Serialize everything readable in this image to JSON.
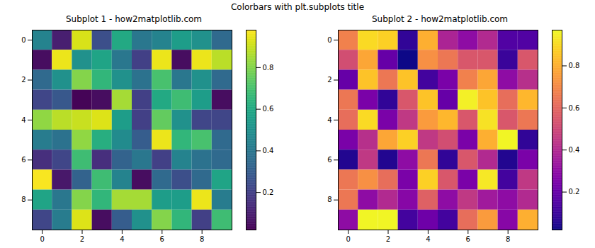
{
  "title": "Colorbars with plt.subplots title",
  "chart_data": [
    {
      "type": "heatmap",
      "title": "Subplot 1 - how2matplotlib.com",
      "color": "viridis",
      "xlim": [
        -0.5,
        9.5
      ],
      "ylim": [
        9.5,
        -0.5
      ],
      "xticks": [
        0,
        2,
        4,
        6,
        8
      ],
      "yticks": [
        0,
        2,
        4,
        6,
        8
      ],
      "cells": [
        [
          0.45,
          0.1,
          0.92,
          0.25,
          0.6,
          0.4,
          0.45,
          0.55,
          0.5,
          0.35
        ],
        [
          0.05,
          0.95,
          0.5,
          0.58,
          0.4,
          0.2,
          0.95,
          0.05,
          0.95,
          0.88
        ],
        [
          0.35,
          0.5,
          0.8,
          0.65,
          0.5,
          0.38,
          0.7,
          0.4,
          0.5,
          0.35
        ],
        [
          0.22,
          0.28,
          0.03,
          0.05,
          0.85,
          0.2,
          0.6,
          0.68,
          0.55,
          0.05
        ],
        [
          0.82,
          0.88,
          0.9,
          0.93,
          0.55,
          0.2,
          0.75,
          0.5,
          0.22,
          0.22
        ],
        [
          0.42,
          0.38,
          0.82,
          0.62,
          0.48,
          0.3,
          0.95,
          0.65,
          0.7,
          0.35
        ],
        [
          0.15,
          0.22,
          0.68,
          0.15,
          0.32,
          0.4,
          0.2,
          0.45,
          0.38,
          0.35
        ],
        [
          0.97,
          0.08,
          0.32,
          0.68,
          0.45,
          0.05,
          0.35,
          0.25,
          0.35,
          0.58
        ],
        [
          0.58,
          0.4,
          0.8,
          0.65,
          0.85,
          0.85,
          0.55,
          0.55,
          0.95,
          0.42
        ],
        [
          0.22,
          0.42,
          0.93,
          0.05,
          0.3,
          0.5,
          0.8,
          0.65,
          0.2,
          0.68
        ]
      ],
      "colorbar": {
        "range": [
          0.02,
          0.98
        ],
        "ticks": [
          0.2,
          0.4,
          0.6,
          0.8
        ]
      }
    },
    {
      "type": "heatmap",
      "title": "Subplot 2 - how2matplotlib.com",
      "color": "plasma",
      "xlim": [
        -0.5,
        9.5
      ],
      "ylim": [
        9.5,
        -0.5
      ],
      "xticks": [
        0,
        2,
        4,
        6,
        8
      ],
      "yticks": [
        0,
        2,
        4,
        6,
        8
      ],
      "cells": [
        [
          0.68,
          0.9,
          0.88,
          0.08,
          0.8,
          0.38,
          0.3,
          0.4,
          0.15,
          0.15
        ],
        [
          0.52,
          0.78,
          0.2,
          0.02,
          0.72,
          0.65,
          0.55,
          0.55,
          0.1,
          0.55
        ],
        [
          0.2,
          0.85,
          0.65,
          0.85,
          0.12,
          0.25,
          0.68,
          0.78,
          0.3,
          0.42
        ],
        [
          0.65,
          0.25,
          0.08,
          0.55,
          0.85,
          0.2,
          0.95,
          0.85,
          0.62,
          0.82
        ],
        [
          0.62,
          0.9,
          0.25,
          0.45,
          0.75,
          0.82,
          0.55,
          0.92,
          0.55,
          0.65
        ],
        [
          0.25,
          0.42,
          0.78,
          0.88,
          0.45,
          0.52,
          0.25,
          0.8,
          0.96,
          0.08
        ],
        [
          0.05,
          0.45,
          0.05,
          0.3,
          0.65,
          0.08,
          0.55,
          0.4,
          0.05,
          0.25
        ],
        [
          0.65,
          0.72,
          0.62,
          0.25,
          0.88,
          0.55,
          0.25,
          0.93,
          0.12,
          0.45
        ],
        [
          0.65,
          0.3,
          0.4,
          0.28,
          0.58,
          0.3,
          0.45,
          0.35,
          0.3,
          0.4
        ],
        [
          0.3,
          0.96,
          0.96,
          0.12,
          0.22,
          0.12,
          0.62,
          0.75,
          0.28,
          0.8
        ]
      ],
      "colorbar": {
        "range": [
          0.02,
          0.97
        ],
        "ticks": [
          0.2,
          0.4,
          0.6,
          0.8
        ]
      }
    }
  ]
}
